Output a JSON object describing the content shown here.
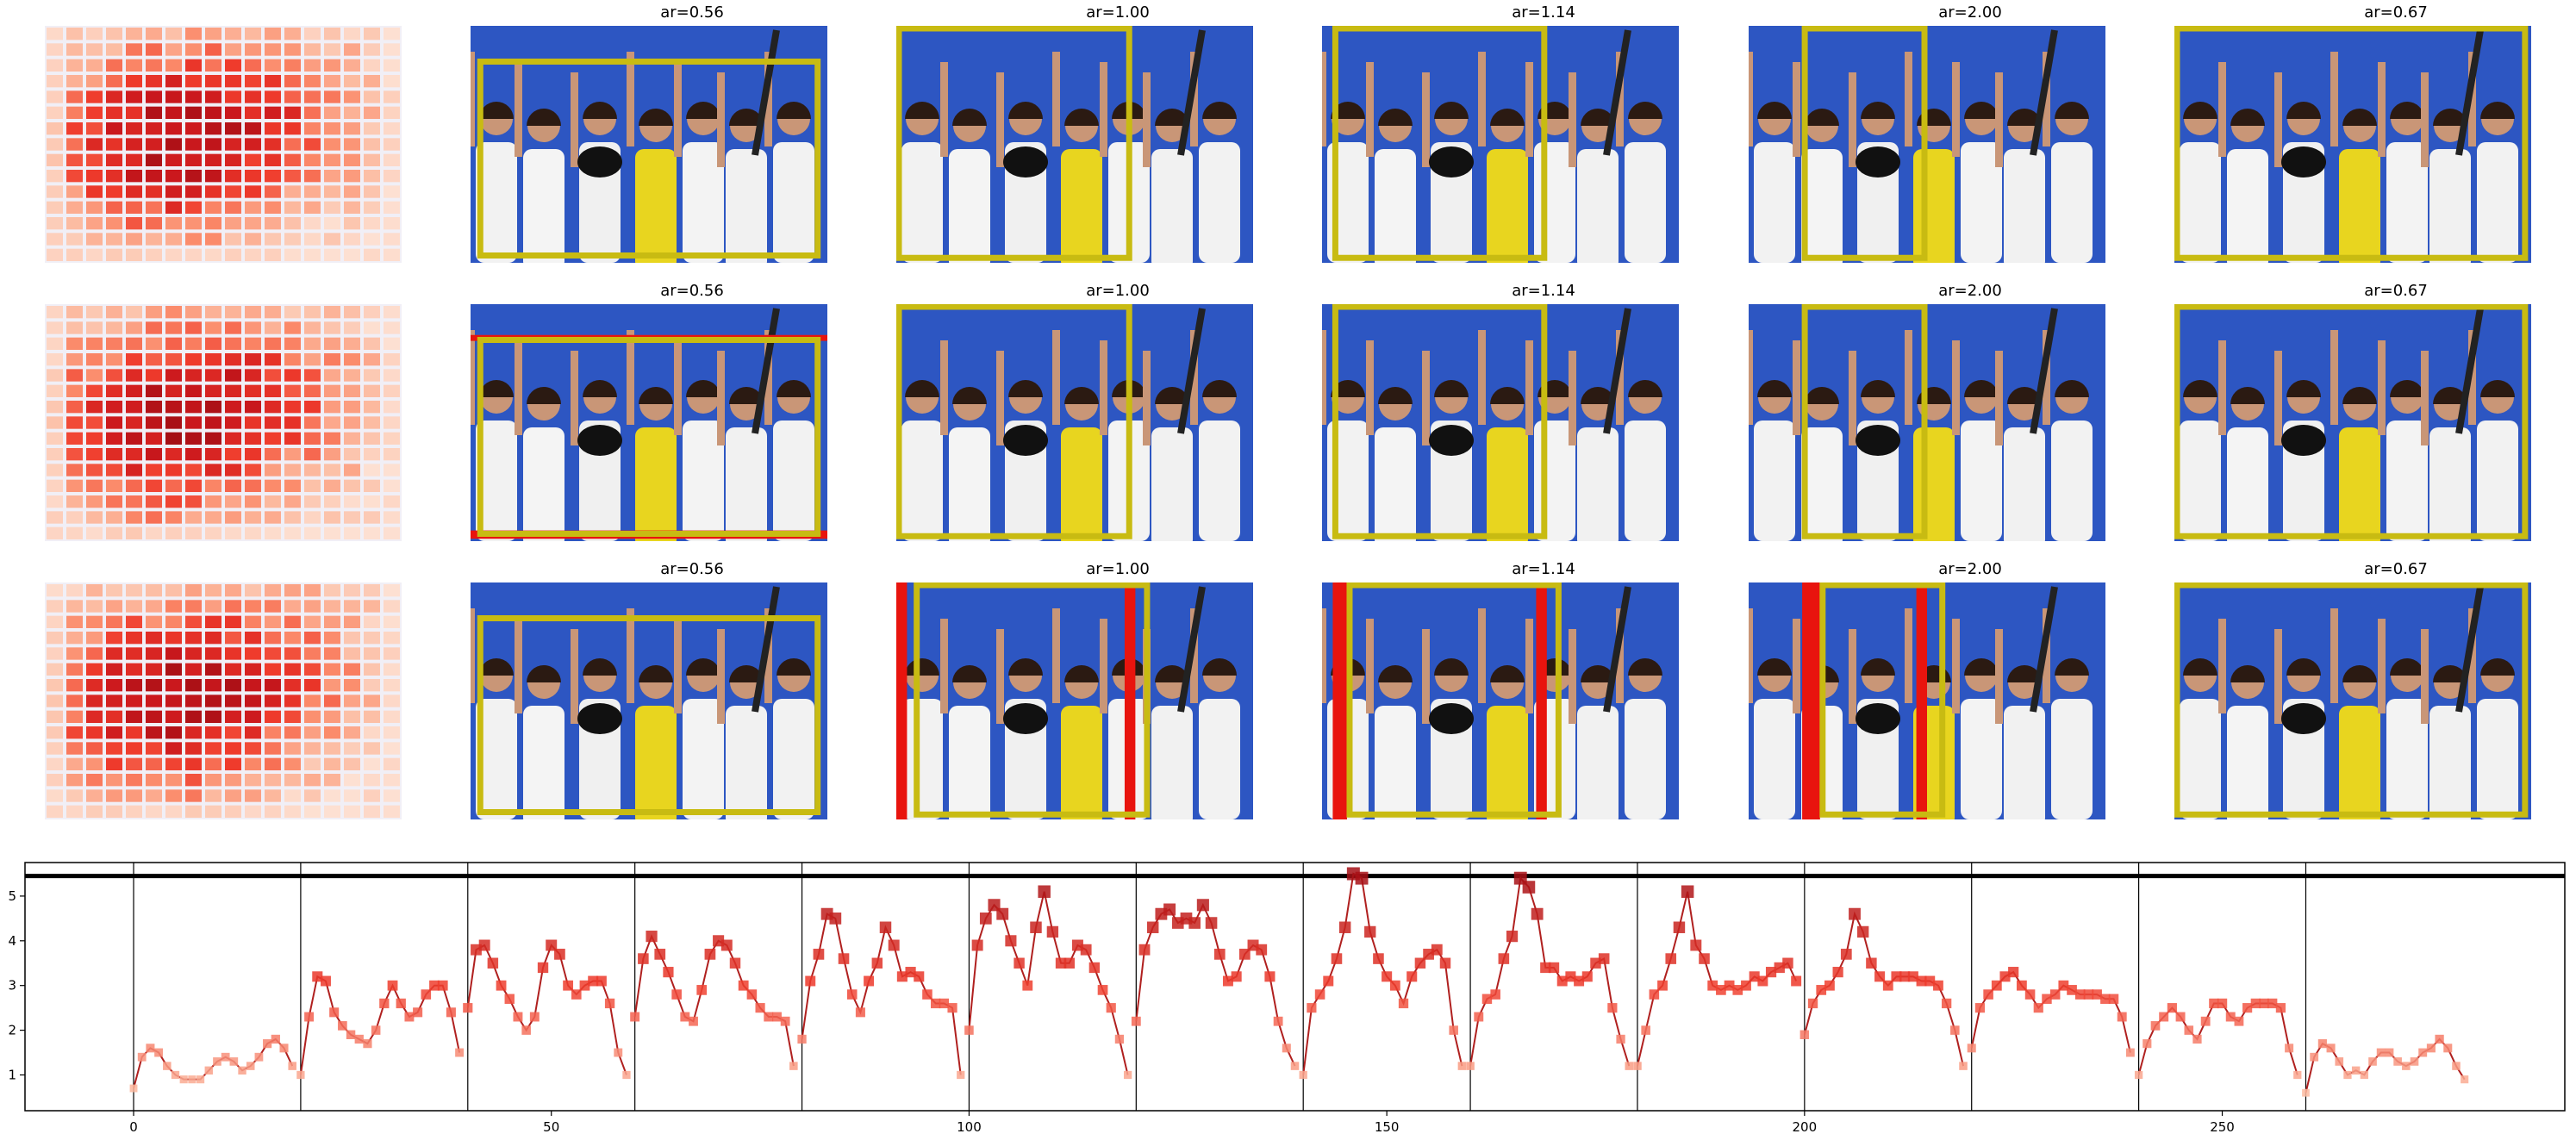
{
  "colors": {
    "crop_box": "#c8bb12",
    "mask_overlay": "#e8140e",
    "line": "#b0201f",
    "photo_background": "#2d56c2"
  },
  "grid_panels": {
    "rows": 3,
    "titles": [
      "ar=0.56",
      "ar=1.00",
      "ar=1.14",
      "ar=2.00",
      "ar=0.67"
    ]
  },
  "chart_data": {
    "type": "line",
    "xlim": [
      -13,
      291
    ],
    "ylim": [
      0.2,
      5.75
    ],
    "xticks": [
      0,
      50,
      100,
      150,
      200,
      250
    ],
    "yticks": [
      1,
      2,
      3,
      4,
      5
    ],
    "grid": false,
    "reference_line": 5.45,
    "group_separators": [
      0,
      20,
      40,
      60,
      80,
      100,
      120,
      140,
      160,
      180,
      200,
      220,
      240,
      260
    ],
    "segments": [
      {
        "x_start": 0,
        "values": [
          0.7,
          1.4,
          1.6,
          1.5,
          1.2,
          1.0,
          0.9,
          0.9,
          0.9,
          1.1,
          1.3,
          1.4,
          1.3,
          1.1,
          1.2,
          1.4,
          1.7,
          1.8,
          1.6,
          1.2
        ]
      },
      {
        "x_start": 20,
        "values": [
          1.0,
          2.3,
          3.2,
          3.1,
          2.4,
          2.1,
          1.9,
          1.8,
          1.7,
          2.0,
          2.6,
          3.0,
          2.6,
          2.3,
          2.4,
          2.8,
          3.0,
          3.0,
          2.4,
          1.5
        ]
      },
      {
        "x_start": 40,
        "values": [
          2.5,
          3.8,
          3.9,
          3.5,
          3.0,
          2.7,
          2.3,
          2.0,
          2.3,
          3.4,
          3.9,
          3.7,
          3.0,
          2.8,
          3.0,
          3.1,
          3.1,
          2.6,
          1.5,
          1.0
        ]
      },
      {
        "x_start": 60,
        "values": [
          2.3,
          3.6,
          4.1,
          3.7,
          3.3,
          2.8,
          2.3,
          2.2,
          2.9,
          3.7,
          4.0,
          3.9,
          3.5,
          3.0,
          2.8,
          2.5,
          2.3,
          2.3,
          2.2,
          1.2
        ]
      },
      {
        "x_start": 80,
        "values": [
          1.8,
          3.1,
          3.7,
          4.6,
          4.5,
          3.6,
          2.8,
          2.4,
          3.1,
          3.5,
          4.3,
          3.9,
          3.2,
          3.3,
          3.2,
          2.8,
          2.6,
          2.6,
          2.5,
          1.0
        ]
      },
      {
        "x_start": 100,
        "values": [
          2.0,
          3.9,
          4.5,
          4.8,
          4.6,
          4.0,
          3.5,
          3.0,
          4.3,
          5.1,
          4.2,
          3.5,
          3.5,
          3.9,
          3.8,
          3.4,
          2.9,
          2.5,
          1.8,
          1.0
        ]
      },
      {
        "x_start": 120,
        "values": [
          2.2,
          3.8,
          4.3,
          4.6,
          4.7,
          4.4,
          4.5,
          4.4,
          4.8,
          4.4,
          3.7,
          3.1,
          3.2,
          3.7,
          3.9,
          3.8,
          3.2,
          2.2,
          1.6,
          1.2
        ]
      },
      {
        "x_start": 140,
        "values": [
          1.0,
          2.5,
          2.8,
          3.1,
          3.6,
          4.3,
          5.5,
          5.4,
          4.2,
          3.6,
          3.2,
          3.0,
          2.6,
          3.2,
          3.5,
          3.7,
          3.8,
          3.5,
          2.0,
          1.2
        ]
      },
      {
        "x_start": 160,
        "values": [
          1.2,
          2.3,
          2.7,
          2.8,
          3.6,
          4.1,
          5.4,
          5.2,
          4.6,
          3.4,
          3.4,
          3.1,
          3.2,
          3.1,
          3.2,
          3.5,
          3.6,
          2.5,
          1.8,
          1.2
        ]
      },
      {
        "x_start": 180,
        "values": [
          1.2,
          2.0,
          2.8,
          3.0,
          3.6,
          4.3,
          5.1,
          3.9,
          3.6,
          3.0,
          2.9,
          3.0,
          2.9,
          3.0,
          3.2,
          3.1,
          3.3,
          3.4,
          3.5,
          3.1
        ]
      },
      {
        "x_start": 200,
        "values": [
          1.9,
          2.6,
          2.9,
          3.0,
          3.3,
          3.7,
          4.6,
          4.2,
          3.5,
          3.2,
          3.0,
          3.2,
          3.2,
          3.2,
          3.1,
          3.1,
          3.0,
          2.6,
          2.0,
          1.2
        ]
      },
      {
        "x_start": 220,
        "values": [
          1.6,
          2.5,
          2.8,
          3.0,
          3.2,
          3.3,
          3.0,
          2.8,
          2.5,
          2.7,
          2.8,
          3.0,
          2.9,
          2.8,
          2.8,
          2.8,
          2.7,
          2.7,
          2.3,
          1.5
        ]
      },
      {
        "x_start": 240,
        "values": [
          1.0,
          1.7,
          2.1,
          2.3,
          2.5,
          2.3,
          2.0,
          1.8,
          2.2,
          2.6,
          2.6,
          2.3,
          2.2,
          2.5,
          2.6,
          2.6,
          2.6,
          2.5,
          1.6,
          1.0
        ]
      },
      {
        "x_start": 260,
        "values": [
          0.6,
          1.4,
          1.7,
          1.6,
          1.3,
          1.0,
          1.1,
          1.0,
          1.3,
          1.5,
          1.5,
          1.3,
          1.2,
          1.3,
          1.5,
          1.6,
          1.8,
          1.6,
          1.2,
          0.9
        ]
      }
    ]
  }
}
